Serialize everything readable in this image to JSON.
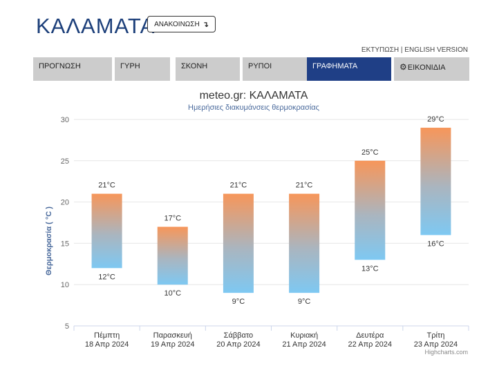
{
  "header": {
    "city": "ΚΑΛΑΜΑΤΑ",
    "announce_label": "ΑΝΑΚΟΙΝΩΣΗ",
    "announce_icon": "arrow-turn-down-icon",
    "print_link": "ΕΚΤΥΠΩΣΗ",
    "separator": "|",
    "english_link": "ENGLISH VERSION"
  },
  "tabs": [
    {
      "label": "ΠΡΟΓΝΩΣΗ"
    },
    {
      "label": "ΓΥΡΗ"
    },
    {
      "label": "ΣΚΟΝΗ"
    },
    {
      "label": "ΡΥΠΟΙ"
    },
    {
      "label": "ΓΡΑΦΗΜΑΤΑ"
    },
    {
      "label": "ΕΙΚΟΝΙΔΙΑ",
      "icon": "gear-icon"
    }
  ],
  "active_tab": "ΓΡΑΦΗΜΑΤΑ",
  "colors": {
    "accent": "#1f3f86",
    "title": "#333333",
    "bar_top": "#f7965a",
    "bar_bottom": "#7ec8f2",
    "grid": "#e6e6e6"
  },
  "chart_data": {
    "type": "bar",
    "subtype": "columnrange",
    "title": "meteo.gr: ΚΑΛΑΜΑΤΑ",
    "subtitle": "Ημερήσιες διακυμάνσεις θερμοκρασίας",
    "ylabel": "Θερμοκρασία ( °C )",
    "ylim": [
      5,
      30
    ],
    "yticks": [
      5,
      10,
      15,
      20,
      25,
      30
    ],
    "grid": true,
    "categories": [
      {
        "day": "Πέμπτη",
        "date": "18 Απρ 2024"
      },
      {
        "day": "Παρασκευή",
        "date": "19 Απρ 2024"
      },
      {
        "day": "Σάββατο",
        "date": "20 Απρ 2024"
      },
      {
        "day": "Κυριακή",
        "date": "21 Απρ 2024"
      },
      {
        "day": "Δευτέρα",
        "date": "22 Απρ 2024"
      },
      {
        "day": "Τρίτη",
        "date": "23 Απρ 2024"
      }
    ],
    "min": [
      12,
      10,
      9,
      9,
      13,
      16
    ],
    "max": [
      21,
      17,
      21,
      21,
      25,
      29
    ],
    "value_suffix": "°C",
    "credits": "Highcharts.com"
  }
}
